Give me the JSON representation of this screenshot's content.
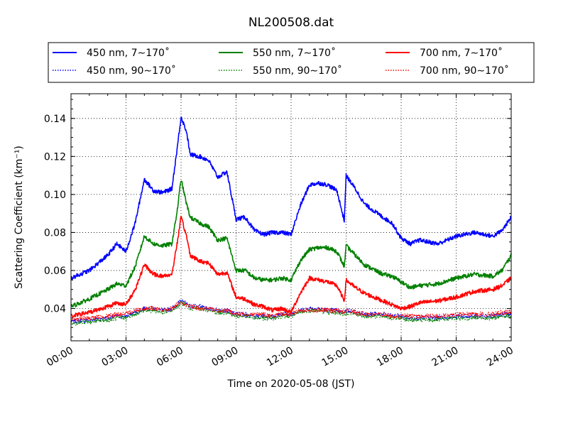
{
  "chart_data": {
    "type": "line",
    "title": "NL200508.dat",
    "xlabel": "Time on 2020-05-08 (JST)",
    "ylabel": "Scattering Coefficient (km⁻¹)",
    "xlim": [
      0,
      24
    ],
    "ylim": [
      0.023,
      0.153
    ],
    "x_ticks": [
      0,
      3,
      6,
      9,
      12,
      15,
      18,
      21,
      24
    ],
    "x_tick_labels": [
      "00:00",
      "03:00",
      "06:00",
      "09:00",
      "12:00",
      "15:00",
      "18:00",
      "21:00",
      "24:00"
    ],
    "y_ticks": [
      0.04,
      0.06,
      0.08,
      0.1,
      0.12,
      0.14
    ],
    "y_tick_labels": [
      "0.04",
      "0.06",
      "0.08",
      "0.10",
      "0.12",
      "0.14"
    ],
    "grid": true,
    "legend_position": "top, above plot, 3 columns",
    "x_hours": [
      0,
      1,
      2,
      2.5,
      3,
      3.5,
      4,
      4.5,
      5,
      5.5,
      5.8,
      6,
      6.3,
      6.5,
      7,
      7.5,
      8,
      8.5,
      9,
      9.5,
      10,
      10.5,
      11,
      11.5,
      12,
      12.5,
      13,
      13.5,
      14,
      14.5,
      14.9,
      15,
      15.5,
      16,
      17,
      17.5,
      18,
      18.5,
      19,
      20,
      21,
      22,
      23,
      23.5,
      24
    ],
    "series": [
      {
        "name": "450 nm, 7∼170˚",
        "color": "#0000ff",
        "style": "solid",
        "values": [
          0.056,
          0.06,
          0.068,
          0.074,
          0.07,
          0.085,
          0.108,
          0.102,
          0.101,
          0.103,
          0.125,
          0.141,
          0.133,
          0.121,
          0.12,
          0.118,
          0.109,
          0.112,
          0.087,
          0.088,
          0.081,
          0.079,
          0.08,
          0.08,
          0.079,
          0.094,
          0.105,
          0.106,
          0.105,
          0.102,
          0.086,
          0.11,
          0.103,
          0.095,
          0.088,
          0.085,
          0.077,
          0.074,
          0.076,
          0.074,
          0.078,
          0.08,
          0.078,
          0.081,
          0.088
        ]
      },
      {
        "name": "550 nm, 7∼170˚",
        "color": "#008000",
        "style": "solid",
        "values": [
          0.041,
          0.045,
          0.05,
          0.053,
          0.052,
          0.062,
          0.078,
          0.074,
          0.073,
          0.074,
          0.092,
          0.108,
          0.095,
          0.088,
          0.085,
          0.083,
          0.076,
          0.077,
          0.06,
          0.06,
          0.056,
          0.055,
          0.055,
          0.056,
          0.055,
          0.065,
          0.071,
          0.072,
          0.072,
          0.07,
          0.062,
          0.073,
          0.068,
          0.063,
          0.058,
          0.057,
          0.054,
          0.051,
          0.052,
          0.053,
          0.056,
          0.058,
          0.057,
          0.06,
          0.068
        ]
      },
      {
        "name": "700 nm, 7∼170˚",
        "color": "#ff0000",
        "style": "solid",
        "values": [
          0.036,
          0.038,
          0.041,
          0.043,
          0.042,
          0.05,
          0.063,
          0.058,
          0.057,
          0.058,
          0.075,
          0.088,
          0.078,
          0.068,
          0.065,
          0.064,
          0.058,
          0.059,
          0.046,
          0.045,
          0.042,
          0.041,
          0.039,
          0.04,
          0.038,
          0.048,
          0.056,
          0.055,
          0.054,
          0.052,
          0.044,
          0.055,
          0.051,
          0.048,
          0.044,
          0.042,
          0.04,
          0.041,
          0.043,
          0.044,
          0.046,
          0.049,
          0.05,
          0.052,
          0.056
        ]
      },
      {
        "name": "450 nm, 90∼170˚",
        "color": "#0000ff",
        "style": "dotted",
        "values": [
          0.033,
          0.034,
          0.035,
          0.036,
          0.036,
          0.038,
          0.04,
          0.04,
          0.039,
          0.04,
          0.042,
          0.044,
          0.043,
          0.041,
          0.041,
          0.04,
          0.039,
          0.039,
          0.037,
          0.037,
          0.036,
          0.036,
          0.036,
          0.037,
          0.037,
          0.039,
          0.04,
          0.04,
          0.039,
          0.039,
          0.038,
          0.039,
          0.038,
          0.037,
          0.037,
          0.036,
          0.036,
          0.035,
          0.035,
          0.035,
          0.036,
          0.036,
          0.036,
          0.037,
          0.037
        ]
      },
      {
        "name": "550 nm, 90∼170˚",
        "color": "#008000",
        "style": "dotted",
        "values": [
          0.032,
          0.033,
          0.034,
          0.035,
          0.035,
          0.037,
          0.039,
          0.039,
          0.038,
          0.039,
          0.041,
          0.043,
          0.042,
          0.04,
          0.04,
          0.039,
          0.038,
          0.038,
          0.036,
          0.036,
          0.035,
          0.035,
          0.035,
          0.036,
          0.036,
          0.038,
          0.039,
          0.039,
          0.038,
          0.038,
          0.037,
          0.038,
          0.037,
          0.036,
          0.036,
          0.035,
          0.035,
          0.034,
          0.034,
          0.034,
          0.035,
          0.035,
          0.035,
          0.036,
          0.036
        ]
      },
      {
        "name": "700 nm, 90∼170˚",
        "color": "#ff0000",
        "style": "dotted",
        "values": [
          0.034,
          0.035,
          0.036,
          0.037,
          0.037,
          0.039,
          0.04,
          0.04,
          0.039,
          0.04,
          0.042,
          0.043,
          0.042,
          0.041,
          0.04,
          0.04,
          0.039,
          0.039,
          0.037,
          0.037,
          0.037,
          0.037,
          0.036,
          0.037,
          0.037,
          0.039,
          0.039,
          0.039,
          0.039,
          0.039,
          0.038,
          0.039,
          0.038,
          0.037,
          0.037,
          0.036,
          0.036,
          0.036,
          0.036,
          0.036,
          0.037,
          0.037,
          0.037,
          0.038,
          0.038
        ]
      }
    ]
  }
}
